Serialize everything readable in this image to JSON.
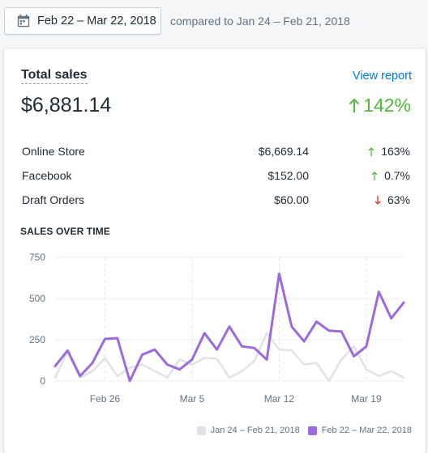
{
  "date_picker": {
    "label": "Feb 22 – Mar 22, 2018",
    "compare_text": "compared to Jan 24 – Feb 21, 2018"
  },
  "card": {
    "title": "Total sales",
    "view_report": "View report",
    "total": "$6,881.14",
    "change": "142%",
    "rows": [
      {
        "channel": "Online Store",
        "value": "$6,669.14",
        "pct": "163%",
        "direction": "up"
      },
      {
        "channel": "Facebook",
        "value": "$152.00",
        "pct": "0.7%",
        "direction": "up"
      },
      {
        "channel": "Draft Orders",
        "value": "$60.00",
        "pct": "63%",
        "direction": "down"
      }
    ]
  },
  "colors": {
    "current": "#9c6ade",
    "previous": "#dfe3e8",
    "up": "#50b83c",
    "down": "#de3618",
    "link": "#007ace"
  },
  "chart_data": {
    "type": "line",
    "title": "SALES OVER TIME",
    "ylim": [
      0,
      750
    ],
    "yticks": [
      0,
      250,
      500,
      750
    ],
    "x_ticks": [
      {
        "index": 4,
        "label": "Feb 26"
      },
      {
        "index": 11,
        "label": "Mar 5"
      },
      {
        "index": 18,
        "label": "Mar 12"
      },
      {
        "index": 25,
        "label": "Mar 19"
      }
    ],
    "series": [
      {
        "name": "Jan 24 – Feb 21, 2018",
        "values": [
          20,
          180,
          20,
          60,
          140,
          30,
          80,
          100,
          60,
          20,
          130,
          100,
          140,
          135,
          20,
          60,
          120,
          290,
          190,
          185,
          100,
          110,
          0,
          130,
          210,
          70,
          30,
          60,
          20
        ]
      },
      {
        "name": "Feb 22 – Mar 22, 2018",
        "values": [
          90,
          185,
          30,
          110,
          255,
          260,
          0,
          160,
          190,
          100,
          70,
          130,
          290,
          190,
          330,
          210,
          200,
          130,
          650,
          330,
          240,
          360,
          305,
          300,
          150,
          210,
          540,
          380,
          475
        ]
      }
    ],
    "legend_position": "bottom-right",
    "grid": true
  }
}
